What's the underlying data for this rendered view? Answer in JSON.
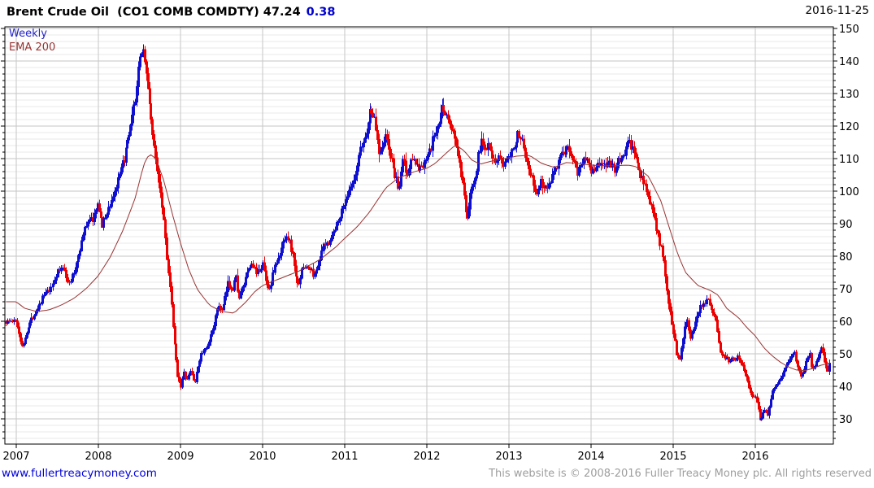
{
  "header": {
    "title": "Brent Crude Oil  (CO1 COMB COMDTY) 47.24",
    "change": "0.38",
    "date": "2016-11-25"
  },
  "legend": {
    "timeframe_label": "Weekly",
    "overlay_label": "EMA 200"
  },
  "footer": {
    "link": "www.fullertreacymoney.com",
    "copyright": "This website is © 2008-2016 Fuller Treacy Money plc. All rights reserved"
  },
  "colors": {
    "up": "#0F0FD0",
    "down": "#EE0000",
    "ema": "#993333",
    "title_text": "#000000",
    "change_text": "#0000CC",
    "legend_weekly": "#2222CC",
    "legend_ema": "#993333",
    "grid_major": "#C6C6C6",
    "grid_minor": "#E8E8E8",
    "axis": "#000000",
    "link": "#0000DD",
    "copyright_text": "#9E9E9E"
  },
  "chart_data": {
    "type": "candlestick-weekly",
    "title": "Brent Crude Oil (CO1 COMB COMDTY)",
    "timeframe": "Weekly",
    "overlay": "EMA 200",
    "last_price": 47.24,
    "change": 0.38,
    "date": "2016-11-25",
    "x_ticks": [
      2007,
      2008,
      2009,
      2010,
      2011,
      2012,
      2013,
      2014,
      2015,
      2016
    ],
    "y_ticks": [
      30,
      40,
      50,
      60,
      70,
      80,
      90,
      100,
      110,
      120,
      130,
      140,
      150
    ],
    "y_minor_step": 2,
    "xlim": [
      2006.861,
      2016.9505
    ],
    "ylim": [
      22.25,
      150.5
    ],
    "grid": "on",
    "legend_position": "top-left",
    "price_anchors": [
      [
        2007.0,
        60
      ],
      [
        2007.04,
        55
      ],
      [
        2007.08,
        52
      ],
      [
        2007.12,
        57
      ],
      [
        2007.17,
        60
      ],
      [
        2007.25,
        64
      ],
      [
        2007.33,
        68
      ],
      [
        2007.42,
        70
      ],
      [
        2007.5,
        75
      ],
      [
        2007.58,
        77
      ],
      [
        2007.63,
        71
      ],
      [
        2007.7,
        75
      ],
      [
        2007.75,
        80
      ],
      [
        2007.83,
        88
      ],
      [
        2007.88,
        92
      ],
      [
        2007.92,
        91
      ],
      [
        2008.0,
        96
      ],
      [
        2008.04,
        89
      ],
      [
        2008.08,
        92
      ],
      [
        2008.17,
        98
      ],
      [
        2008.25,
        104
      ],
      [
        2008.33,
        112
      ],
      [
        2008.38,
        118
      ],
      [
        2008.42,
        124
      ],
      [
        2008.46,
        131
      ],
      [
        2008.5,
        140
      ],
      [
        2008.53,
        145
      ],
      [
        2008.56,
        141
      ],
      [
        2008.6,
        131
      ],
      [
        2008.63,
        125
      ],
      [
        2008.67,
        114
      ],
      [
        2008.71,
        108
      ],
      [
        2008.75,
        101
      ],
      [
        2008.79,
        92
      ],
      [
        2008.83,
        80
      ],
      [
        2008.88,
        67
      ],
      [
        2008.92,
        54
      ],
      [
        2008.96,
        44
      ],
      [
        2009.0,
        40
      ],
      [
        2009.04,
        44
      ],
      [
        2009.08,
        42
      ],
      [
        2009.12,
        45
      ],
      [
        2009.17,
        41
      ],
      [
        2009.21,
        46
      ],
      [
        2009.25,
        50
      ],
      [
        2009.33,
        52
      ],
      [
        2009.38,
        57
      ],
      [
        2009.42,
        61
      ],
      [
        2009.46,
        65
      ],
      [
        2009.5,
        63
      ],
      [
        2009.54,
        67
      ],
      [
        2009.58,
        72
      ],
      [
        2009.63,
        70
      ],
      [
        2009.67,
        74
      ],
      [
        2009.71,
        67
      ],
      [
        2009.75,
        70
      ],
      [
        2009.83,
        76
      ],
      [
        2009.88,
        78
      ],
      [
        2009.92,
        74
      ],
      [
        2010.0,
        78
      ],
      [
        2010.04,
        72
      ],
      [
        2010.08,
        70
      ],
      [
        2010.12,
        75
      ],
      [
        2010.17,
        78
      ],
      [
        2010.21,
        80
      ],
      [
        2010.25,
        85
      ],
      [
        2010.29,
        87
      ],
      [
        2010.33,
        84
      ],
      [
        2010.38,
        78
      ],
      [
        2010.42,
        71
      ],
      [
        2010.46,
        74
      ],
      [
        2010.5,
        77
      ],
      [
        2010.58,
        76
      ],
      [
        2010.63,
        74
      ],
      [
        2010.67,
        78
      ],
      [
        2010.71,
        81
      ],
      [
        2010.75,
        83
      ],
      [
        2010.79,
        84
      ],
      [
        2010.83,
        86
      ],
      [
        2010.88,
        88
      ],
      [
        2010.92,
        92
      ],
      [
        2010.96,
        94
      ],
      [
        2011.0,
        97
      ],
      [
        2011.04,
        99
      ],
      [
        2011.08,
        101
      ],
      [
        2011.13,
        104
      ],
      [
        2011.17,
        111
      ],
      [
        2011.21,
        114
      ],
      [
        2011.25,
        117
      ],
      [
        2011.29,
        122
      ],
      [
        2011.31,
        126
      ],
      [
        2011.35,
        123
      ],
      [
        2011.38,
        119
      ],
      [
        2011.42,
        112
      ],
      [
        2011.46,
        115
      ],
      [
        2011.5,
        117
      ],
      [
        2011.54,
        112
      ],
      [
        2011.58,
        108
      ],
      [
        2011.63,
        103
      ],
      [
        2011.65,
        99
      ],
      [
        2011.69,
        106
      ],
      [
        2011.71,
        112
      ],
      [
        2011.75,
        104
      ],
      [
        2011.79,
        108
      ],
      [
        2011.83,
        112
      ],
      [
        2011.88,
        107
      ],
      [
        2011.92,
        108
      ],
      [
        2011.96,
        107
      ],
      [
        2012.0,
        111
      ],
      [
        2012.04,
        112
      ],
      [
        2012.08,
        117
      ],
      [
        2012.13,
        119
      ],
      [
        2012.17,
        124
      ],
      [
        2012.19,
        126
      ],
      [
        2012.25,
        123
      ],
      [
        2012.29,
        119
      ],
      [
        2012.33,
        118
      ],
      [
        2012.38,
        110
      ],
      [
        2012.42,
        104
      ],
      [
        2012.46,
        96
      ],
      [
        2012.48,
        90
      ],
      [
        2012.52,
        97
      ],
      [
        2012.56,
        103
      ],
      [
        2012.6,
        106
      ],
      [
        2012.63,
        113
      ],
      [
        2012.67,
        115
      ],
      [
        2012.71,
        113
      ],
      [
        2012.75,
        116
      ],
      [
        2012.79,
        112
      ],
      [
        2012.83,
        108
      ],
      [
        2012.88,
        110
      ],
      [
        2012.92,
        107
      ],
      [
        2012.96,
        111
      ],
      [
        2013.0,
        112
      ],
      [
        2013.04,
        113
      ],
      [
        2013.08,
        116
      ],
      [
        2013.13,
        118
      ],
      [
        2013.17,
        116
      ],
      [
        2013.21,
        110
      ],
      [
        2013.25,
        107
      ],
      [
        2013.29,
        102
      ],
      [
        2013.33,
        99
      ],
      [
        2013.38,
        103
      ],
      [
        2013.42,
        102
      ],
      [
        2013.46,
        101
      ],
      [
        2013.5,
        103
      ],
      [
        2013.54,
        107
      ],
      [
        2013.58,
        108
      ],
      [
        2013.63,
        111
      ],
      [
        2013.67,
        110
      ],
      [
        2013.71,
        115
      ],
      [
        2013.75,
        112
      ],
      [
        2013.79,
        109
      ],
      [
        2013.83,
        106
      ],
      [
        2013.88,
        108
      ],
      [
        2013.92,
        111
      ],
      [
        2013.96,
        110
      ],
      [
        2014.0,
        107
      ],
      [
        2014.04,
        106
      ],
      [
        2014.08,
        109
      ],
      [
        2014.13,
        108
      ],
      [
        2014.17,
        107
      ],
      [
        2014.21,
        110
      ],
      [
        2014.25,
        108
      ],
      [
        2014.29,
        107
      ],
      [
        2014.33,
        109
      ],
      [
        2014.38,
        110
      ],
      [
        2014.42,
        113
      ],
      [
        2014.46,
        115
      ],
      [
        2014.5,
        113
      ],
      [
        2014.54,
        110
      ],
      [
        2014.58,
        106
      ],
      [
        2014.63,
        103
      ],
      [
        2014.67,
        101
      ],
      [
        2014.71,
        97
      ],
      [
        2014.75,
        94
      ],
      [
        2014.79,
        88
      ],
      [
        2014.83,
        84
      ],
      [
        2014.88,
        79
      ],
      [
        2014.92,
        71
      ],
      [
        2014.96,
        63
      ],
      [
        2015.0,
        57
      ],
      [
        2015.04,
        50
      ],
      [
        2015.08,
        49
      ],
      [
        2015.13,
        58
      ],
      [
        2015.17,
        61
      ],
      [
        2015.21,
        55
      ],
      [
        2015.25,
        57
      ],
      [
        2015.29,
        62
      ],
      [
        2015.33,
        65
      ],
      [
        2015.38,
        66
      ],
      [
        2015.42,
        67
      ],
      [
        2015.46,
        64
      ],
      [
        2015.5,
        62
      ],
      [
        2015.54,
        57
      ],
      [
        2015.58,
        50
      ],
      [
        2015.63,
        49
      ],
      [
        2015.67,
        48
      ],
      [
        2015.71,
        49
      ],
      [
        2015.75,
        48
      ],
      [
        2015.79,
        50
      ],
      [
        2015.83,
        47
      ],
      [
        2015.88,
        44
      ],
      [
        2015.92,
        40
      ],
      [
        2015.96,
        37
      ],
      [
        2016.0,
        37
      ],
      [
        2016.04,
        33
      ],
      [
        2016.06,
        29
      ],
      [
        2016.1,
        33
      ],
      [
        2016.13,
        33
      ],
      [
        2016.15,
        31
      ],
      [
        2016.17,
        34
      ],
      [
        2016.21,
        39
      ],
      [
        2016.25,
        40
      ],
      [
        2016.29,
        42
      ],
      [
        2016.33,
        44
      ],
      [
        2016.38,
        47
      ],
      [
        2016.42,
        48
      ],
      [
        2016.44,
        50
      ],
      [
        2016.48,
        50
      ],
      [
        2016.52,
        46
      ],
      [
        2016.54,
        44
      ],
      [
        2016.56,
        42
      ],
      [
        2016.6,
        47
      ],
      [
        2016.63,
        49
      ],
      [
        2016.67,
        50
      ],
      [
        2016.69,
        46
      ],
      [
        2016.73,
        46
      ],
      [
        2016.77,
        50
      ],
      [
        2016.81,
        52
      ],
      [
        2016.83,
        50
      ],
      [
        2016.85,
        46
      ],
      [
        2016.88,
        44.8
      ],
      [
        2016.9,
        47.24
      ]
    ],
    "ema_anchors": [
      [
        2007.0,
        66
      ],
      [
        2007.1,
        64
      ],
      [
        2007.25,
        63
      ],
      [
        2007.4,
        63.5
      ],
      [
        2007.55,
        65
      ],
      [
        2007.7,
        67
      ],
      [
        2007.85,
        70
      ],
      [
        2008.0,
        74
      ],
      [
        2008.15,
        80
      ],
      [
        2008.3,
        88
      ],
      [
        2008.45,
        98
      ],
      [
        2008.55,
        108
      ],
      [
        2008.62,
        111.5
      ],
      [
        2008.7,
        110
      ],
      [
        2008.8,
        103
      ],
      [
        2008.9,
        93
      ],
      [
        2009.0,
        84
      ],
      [
        2009.1,
        76
      ],
      [
        2009.2,
        70
      ],
      [
        2009.35,
        65
      ],
      [
        2009.5,
        63
      ],
      [
        2009.65,
        62.5
      ],
      [
        2009.8,
        66
      ],
      [
        2009.9,
        69
      ],
      [
        2010.0,
        71
      ],
      [
        2010.2,
        73
      ],
      [
        2010.45,
        75.5
      ],
      [
        2010.7,
        79
      ],
      [
        2010.9,
        83
      ],
      [
        2011.0,
        85.5
      ],
      [
        2011.15,
        89
      ],
      [
        2011.3,
        93.5
      ],
      [
        2011.5,
        101
      ],
      [
        2011.65,
        104
      ],
      [
        2011.85,
        106
      ],
      [
        2012.0,
        107
      ],
      [
        2012.1,
        108.5
      ],
      [
        2012.25,
        112
      ],
      [
        2012.35,
        114.2
      ],
      [
        2012.45,
        112.5
      ],
      [
        2012.55,
        109.5
      ],
      [
        2012.65,
        108.3
      ],
      [
        2012.8,
        109.3
      ],
      [
        2012.95,
        110
      ],
      [
        2013.1,
        110.8
      ],
      [
        2013.25,
        111
      ],
      [
        2013.4,
        108.5
      ],
      [
        2013.55,
        107.3
      ],
      [
        2013.7,
        108.8
      ],
      [
        2013.85,
        108.5
      ],
      [
        2014.0,
        108
      ],
      [
        2014.15,
        107.8
      ],
      [
        2014.3,
        107.8
      ],
      [
        2014.45,
        108
      ],
      [
        2014.55,
        107.5
      ],
      [
        2014.7,
        104.5
      ],
      [
        2014.85,
        97
      ],
      [
        2014.95,
        89
      ],
      [
        2015.05,
        81
      ],
      [
        2015.15,
        75
      ],
      [
        2015.3,
        71
      ],
      [
        2015.45,
        69.5
      ],
      [
        2015.55,
        68
      ],
      [
        2015.65,
        64
      ],
      [
        2015.8,
        61
      ],
      [
        2015.9,
        58
      ],
      [
        2016.0,
        55.5
      ],
      [
        2016.1,
        52
      ],
      [
        2016.2,
        49.5
      ],
      [
        2016.3,
        47.5
      ],
      [
        2016.4,
        46
      ],
      [
        2016.5,
        45
      ],
      [
        2016.6,
        44.8
      ],
      [
        2016.7,
        45.5
      ],
      [
        2016.8,
        46.5
      ],
      [
        2016.93,
        47.2
      ]
    ]
  }
}
